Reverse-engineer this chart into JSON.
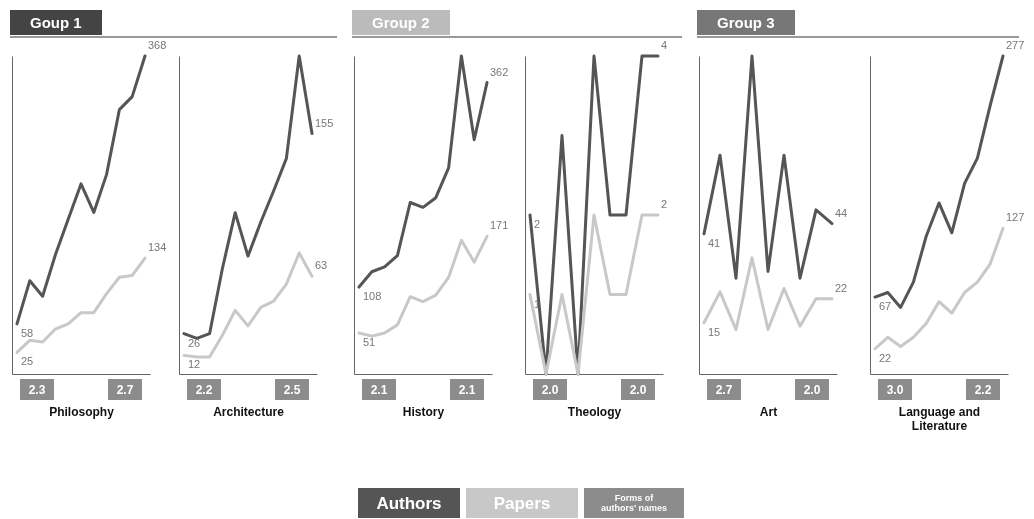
{
  "chart_data": [
    {
      "type": "line",
      "title": "Goup 1",
      "xlabel": "Philosophy",
      "categories": [
        null,
        null,
        null,
        null,
        null,
        null,
        null,
        null,
        null,
        null,
        null
      ],
      "tick_labels": false,
      "legend": "bottom",
      "line_style": "solid",
      "marker": "none",
      "series": [
        {
          "name": "Authors",
          "color": "#555555",
          "values": [
            58,
            108,
            90,
            138,
            179,
            220,
            187,
            231,
            306,
            321,
            368
          ],
          "value_labels": [
            "58",
            null,
            null,
            null,
            null,
            null,
            null,
            null,
            null,
            null,
            "368"
          ]
        },
        {
          "name": "Papers",
          "color": "#c8c8c8",
          "values": [
            25,
            39,
            37,
            52,
            58,
            71,
            71,
            93,
            112,
            114,
            134
          ],
          "value_labels": [
            "25",
            null,
            null,
            null,
            null,
            null,
            null,
            null,
            null,
            null,
            "134"
          ]
        },
        {
          "name": "Forms of authors' names",
          "values": [
            null,
            null,
            null,
            null,
            null,
            null,
            null,
            null,
            null,
            null,
            null
          ],
          "value_labels": [
            "2.3",
            null,
            null,
            null,
            null,
            null,
            null,
            null,
            null,
            null,
            "2.7"
          ]
        }
      ]
    },
    {
      "type": "line",
      "xlabel": "Architecture",
      "categories": [
        null,
        null,
        null,
        null,
        null,
        null,
        null,
        null,
        null,
        null,
        null
      ],
      "tick_labels": false,
      "line_style": "solid",
      "marker": "none",
      "series": [
        {
          "color": "#555555",
          "values": [
            26,
            23,
            26,
            68,
            104,
            76,
            98,
            118,
            139,
            205,
            155
          ],
          "value_labels": [
            "26",
            null,
            null,
            null,
            null,
            null,
            null,
            null,
            null,
            null,
            "155"
          ]
        },
        {
          "color": "#c8c8c8",
          "values": [
            12,
            11,
            11,
            25,
            41,
            31,
            43,
            47,
            58,
            78,
            63
          ],
          "value_labels": [
            "12",
            null,
            null,
            null,
            null,
            null,
            null,
            null,
            null,
            null,
            "63"
          ]
        },
        {
          "values": [
            null,
            null,
            null,
            null,
            null,
            null,
            null,
            null,
            null,
            null,
            null
          ],
          "value_labels": [
            "2.2",
            null,
            null,
            null,
            null,
            null,
            null,
            null,
            null,
            null,
            "2.5"
          ]
        }
      ]
    },
    {
      "type": "line",
      "title": "Group 2",
      "xlabel": "History",
      "categories": [
        null,
        null,
        null,
        null,
        null,
        null,
        null,
        null,
        null,
        null,
        null
      ],
      "tick_labels": false,
      "line_style": "solid",
      "marker": "none",
      "series": [
        {
          "color": "#555555",
          "values": [
            108,
            127,
            133,
            147,
            213,
            207,
            219,
            256,
            395,
            291,
            362
          ],
          "value_labels": [
            "108",
            null,
            null,
            null,
            null,
            null,
            null,
            null,
            null,
            null,
            "362"
          ]
        },
        {
          "color": "#c8c8c8",
          "values": [
            51,
            47,
            51,
            61,
            96,
            90,
            98,
            120,
            166,
            139,
            171
          ],
          "value_labels": [
            "51",
            null,
            null,
            null,
            null,
            null,
            null,
            null,
            null,
            null,
            "171"
          ]
        },
        {
          "values": [
            null,
            null,
            null,
            null,
            null,
            null,
            null,
            null,
            null,
            null,
            null
          ],
          "value_labels": [
            "2.1",
            null,
            null,
            null,
            null,
            null,
            null,
            null,
            null,
            null,
            "2.1"
          ]
        }
      ]
    },
    {
      "type": "line",
      "xlabel": "Theology",
      "categories": [
        null,
        null,
        null,
        null,
        null,
        null,
        null,
        null,
        null
      ],
      "tick_labels": false,
      "line_style": "solid",
      "marker": "none",
      "series": [
        {
          "color": "#555555",
          "values": [
            2,
            0,
            3,
            0,
            4,
            2,
            2,
            4,
            4
          ],
          "value_labels": [
            "2",
            null,
            null,
            null,
            null,
            null,
            null,
            null,
            "4"
          ]
        },
        {
          "color": "#c8c8c8",
          "values": [
            1,
            0,
            1,
            0,
            2,
            1,
            1,
            2,
            2
          ],
          "value_labels": [
            "1",
            null,
            null,
            null,
            null,
            null,
            null,
            null,
            "2"
          ]
        },
        {
          "values": [
            null,
            null,
            null,
            null,
            null,
            null,
            null,
            null,
            null
          ],
          "value_labels": [
            "2.0",
            null,
            null,
            null,
            null,
            null,
            null,
            null,
            "2.0"
          ]
        }
      ]
    },
    {
      "type": "line",
      "title": "Group 3",
      "xlabel": "Art",
      "categories": [
        null,
        null,
        null,
        null,
        null,
        null,
        null,
        null,
        null
      ],
      "tick_labels": false,
      "line_style": "solid",
      "marker": "none",
      "series": [
        {
          "color": "#555555",
          "values": [
            41,
            64,
            28,
            93,
            30,
            64,
            28,
            48,
            44
          ],
          "value_labels": [
            "41",
            null,
            null,
            null,
            null,
            null,
            null,
            null,
            "44"
          ]
        },
        {
          "color": "#c8c8c8",
          "values": [
            15,
            24,
            13,
            34,
            13,
            25,
            14,
            22,
            22
          ],
          "value_labels": [
            "15",
            null,
            null,
            null,
            null,
            null,
            null,
            null,
            "22"
          ]
        },
        {
          "values": [
            null,
            null,
            null,
            null,
            null,
            null,
            null,
            null,
            null
          ],
          "value_labels": [
            "2.7",
            null,
            null,
            null,
            null,
            null,
            null,
            null,
            "2.0"
          ]
        }
      ]
    },
    {
      "type": "line",
      "xlabel": "Language and Literature",
      "categories": [
        null,
        null,
        null,
        null,
        null,
        null,
        null,
        null,
        null,
        null,
        null
      ],
      "tick_labels": false,
      "line_style": "solid",
      "marker": "none",
      "series": [
        {
          "color": "#555555",
          "values": [
            67,
            71,
            58,
            80,
            120,
            149,
            123,
            166,
            188,
            234,
            277
          ],
          "value_labels": [
            "67",
            null,
            null,
            null,
            null,
            null,
            null,
            null,
            null,
            null,
            "277"
          ]
        },
        {
          "color": "#c8c8c8",
          "values": [
            22,
            32,
            24,
            32,
            44,
            63,
            53,
            71,
            80,
            96,
            127
          ],
          "value_labels": [
            "22",
            null,
            null,
            null,
            null,
            null,
            null,
            null,
            null,
            null,
            "127"
          ]
        },
        {
          "values": [
            null,
            null,
            null,
            null,
            null,
            null,
            null,
            null,
            null,
            null,
            null
          ],
          "value_labels": [
            "3.0",
            null,
            null,
            null,
            null,
            null,
            null,
            null,
            null,
            null,
            "2.2"
          ]
        }
      ]
    }
  ]
}
